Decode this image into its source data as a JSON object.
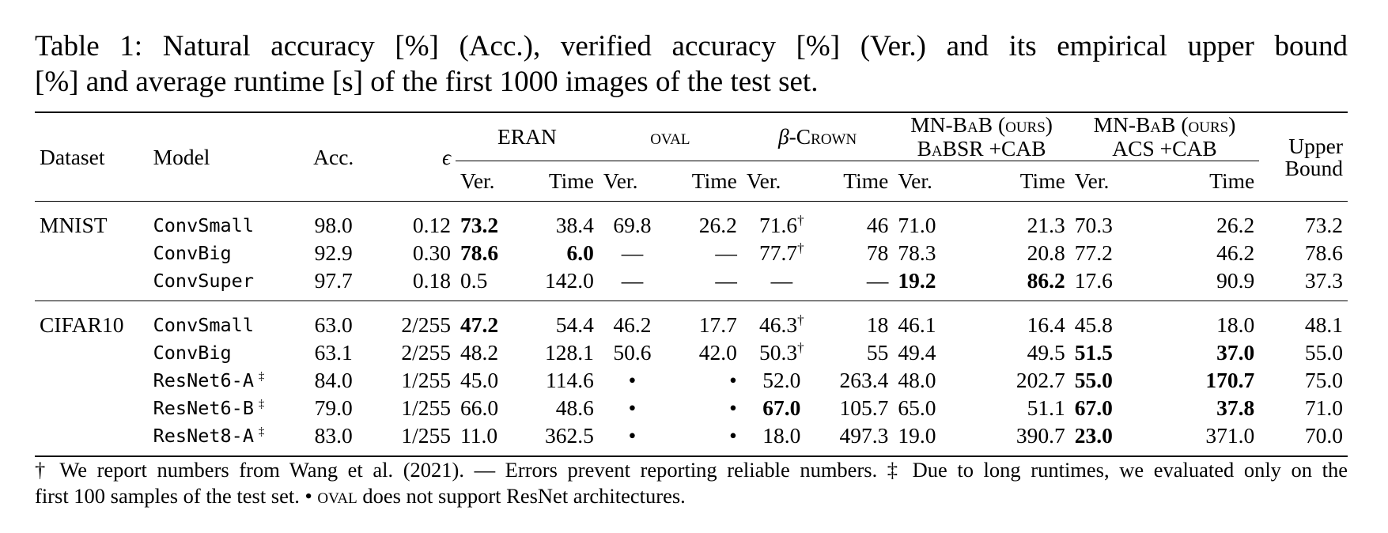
{
  "caption": {
    "line1": "Table 1: Natural accuracy [%] (Acc.), verified accuracy [%] (Ver.)  and its empirical upper bound",
    "line2": "[%] and average runtime [s] of the first 1000 images of the test set."
  },
  "headers": {
    "dataset": "Dataset",
    "model": "Model",
    "acc": "Acc.",
    "eps": "ϵ",
    "eran": "ERAN",
    "oval": "oval",
    "beta_prefix": "β",
    "beta_name": "-Crown",
    "mnbab1_line1": "MN-BaB (ours)",
    "mnbab1_line2": "BaBSR +CAB",
    "mnbab2_line1": "MN-BaB (ours)",
    "mnbab2_line2": "ACS +CAB",
    "upper_line1": "Upper",
    "upper_line2": "Bound",
    "ver": "Ver.",
    "time": "Time"
  },
  "rows": [
    {
      "dataset": "MNIST",
      "model": "ConvSmall",
      "model_sup": "",
      "acc": "98.0",
      "eps": "0.12",
      "eran_ver": "73.2",
      "eran_time": "38.4",
      "oval_ver": "69.8",
      "oval_time": "26.2",
      "beta_ver": "71.6",
      "beta_sup": "†",
      "beta_time": "46",
      "m1_ver": "71.0",
      "m1_time": "21.3",
      "m2_ver": "70.3",
      "m2_time": "26.2",
      "upper": "73.2",
      "bold": [
        "eran_ver"
      ]
    },
    {
      "dataset": "",
      "model": "ConvBig",
      "model_sup": "",
      "acc": "92.9",
      "eps": "0.30",
      "eran_ver": "78.6",
      "eran_time": "6.0",
      "oval_ver": "—",
      "oval_time": "—",
      "beta_ver": "77.7",
      "beta_sup": "†",
      "beta_time": "78",
      "m1_ver": "78.3",
      "m1_time": "20.8",
      "m2_ver": "77.2",
      "m2_time": "46.2",
      "upper": "78.6",
      "bold": [
        "eran_ver",
        "eran_time"
      ]
    },
    {
      "dataset": "",
      "model": "ConvSuper",
      "model_sup": "",
      "acc": "97.7",
      "eps": "0.18",
      "eran_ver": "0.5",
      "eran_time": "142.0",
      "oval_ver": "—",
      "oval_time": "—",
      "beta_ver": "—",
      "beta_sup": "",
      "beta_time": "—",
      "m1_ver": "19.2",
      "m1_time": "86.2",
      "m2_ver": "17.6",
      "m2_time": "90.9",
      "upper": "37.3",
      "bold": [
        "m1_ver",
        "m1_time"
      ]
    },
    {
      "dataset": "CIFAR10",
      "model": "ConvSmall",
      "model_sup": "",
      "acc": "63.0",
      "eps": "2/255",
      "eran_ver": "47.2",
      "eran_time": "54.4",
      "oval_ver": "46.2",
      "oval_time": "17.7",
      "beta_ver": "46.3",
      "beta_sup": "†",
      "beta_time": "18",
      "m1_ver": "46.1",
      "m1_time": "16.4",
      "m2_ver": "45.8",
      "m2_time": "18.0",
      "upper": "48.1",
      "bold": [
        "eran_ver"
      ]
    },
    {
      "dataset": "",
      "model": "ConvBig",
      "model_sup": "",
      "acc": "63.1",
      "eps": "2/255",
      "eran_ver": "48.2",
      "eran_time": "128.1",
      "oval_ver": "50.6",
      "oval_time": "42.0",
      "beta_ver": "50.3",
      "beta_sup": "†",
      "beta_time": "55",
      "m1_ver": "49.4",
      "m1_time": "49.5",
      "m2_ver": "51.5",
      "m2_time": "37.0",
      "upper": "55.0",
      "bold": [
        "m2_ver",
        "m2_time"
      ]
    },
    {
      "dataset": "",
      "model": "ResNet6-A",
      "model_sup": "‡",
      "acc": "84.0",
      "eps": "1/255",
      "eran_ver": "45.0",
      "eran_time": "114.6",
      "oval_ver": "•",
      "oval_time": "•",
      "beta_ver": "52.0",
      "beta_sup": "",
      "beta_time": "263.4",
      "m1_ver": "48.0",
      "m1_time": "202.7",
      "m2_ver": "55.0",
      "m2_time": "170.7",
      "upper": "75.0",
      "bold": [
        "m2_ver",
        "m2_time"
      ]
    },
    {
      "dataset": "",
      "model": "ResNet6-B",
      "model_sup": "‡",
      "acc": "79.0",
      "eps": "1/255",
      "eran_ver": "66.0",
      "eran_time": "48.6",
      "oval_ver": "•",
      "oval_time": "•",
      "beta_ver": "67.0",
      "beta_sup": "",
      "beta_time": "105.7",
      "m1_ver": "65.0",
      "m1_time": "51.1",
      "m2_ver": "67.0",
      "m2_time": "37.8",
      "upper": "71.0",
      "bold": [
        "beta_ver",
        "m2_ver",
        "m2_time"
      ]
    },
    {
      "dataset": "",
      "model": "ResNet8-A",
      "model_sup": "‡",
      "acc": "83.0",
      "eps": "1/255",
      "eran_ver": "11.0",
      "eran_time": "362.5",
      "oval_ver": "•",
      "oval_time": "•",
      "beta_ver": "18.0",
      "beta_sup": "",
      "beta_time": "497.3",
      "m1_ver": "19.0",
      "m1_time": "390.7",
      "m2_ver": "23.0",
      "m2_time": "371.0",
      "upper": "70.0",
      "bold": [
        "m2_ver"
      ]
    }
  ],
  "footnote": {
    "line1": "† We report numbers from Wang et al. (2021). — Errors prevent reporting reliable numbers. ‡ Due to long runtimes, we evaluated only on the",
    "line2": "first 100 samples of the test set. • oval does not support ResNet architectures."
  }
}
